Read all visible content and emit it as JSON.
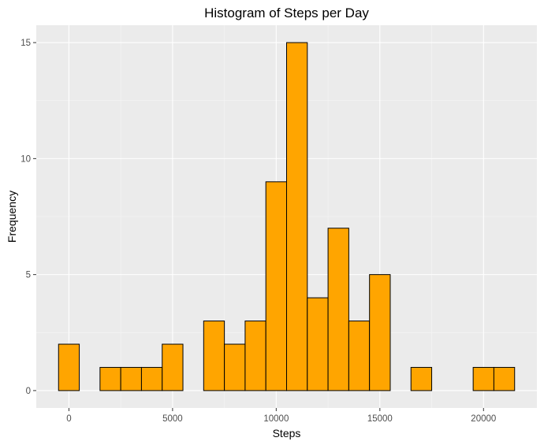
{
  "chart_data": {
    "type": "bar",
    "title": "Histogram of Steps per Day",
    "xlabel": "Steps",
    "ylabel": "Frequency",
    "bin_width": 1000,
    "bins": [
      {
        "center": 0,
        "count": 2
      },
      {
        "center": 1000,
        "count": 0
      },
      {
        "center": 2000,
        "count": 1
      },
      {
        "center": 3000,
        "count": 1
      },
      {
        "center": 4000,
        "count": 1
      },
      {
        "center": 5000,
        "count": 2
      },
      {
        "center": 6000,
        "count": 0
      },
      {
        "center": 7000,
        "count": 3
      },
      {
        "center": 8000,
        "count": 2
      },
      {
        "center": 9000,
        "count": 3
      },
      {
        "center": 10000,
        "count": 9
      },
      {
        "center": 11000,
        "count": 15
      },
      {
        "center": 12000,
        "count": 4
      },
      {
        "center": 13000,
        "count": 7
      },
      {
        "center": 14000,
        "count": 3
      },
      {
        "center": 15000,
        "count": 5
      },
      {
        "center": 16000,
        "count": 0
      },
      {
        "center": 17000,
        "count": 1
      },
      {
        "center": 18000,
        "count": 0
      },
      {
        "center": 19000,
        "count": 0
      },
      {
        "center": 20000,
        "count": 1
      },
      {
        "center": 21000,
        "count": 1
      }
    ],
    "xlim": [
      -1575,
      22575
    ],
    "ylim": [
      -0.75,
      15.75
    ],
    "xticks": [
      0,
      5000,
      10000,
      15000,
      20000
    ],
    "xtick_labels": [
      "0",
      "5000",
      "10000",
      "15000",
      "20000"
    ],
    "yticks": [
      0,
      5,
      10,
      15
    ],
    "ytick_labels": [
      "0",
      "5",
      "10",
      "15"
    ],
    "grid": true,
    "legend": "none",
    "colors": {
      "bar_fill": "#FFA500",
      "bar_stroke": "#000000",
      "panel_background": "#EBEBEB",
      "grid_major": "#FFFFFF",
      "grid_minor": "#F5F5F5",
      "tick_text": "#4D4D4D"
    }
  }
}
